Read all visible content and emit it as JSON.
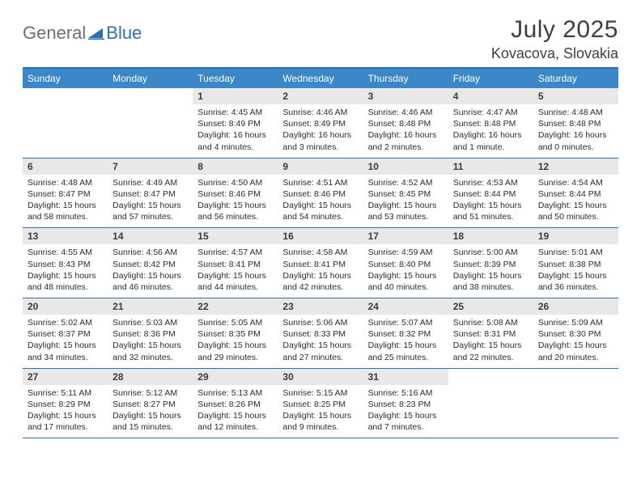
{
  "logo": {
    "general": "General",
    "blue": "Blue"
  },
  "title": "July 2025",
  "location": "Kovacova, Slovakia",
  "colors": {
    "header_bar": "#3b87c8",
    "border": "#2f6fb0",
    "daynum_bg": "#e8e8e8",
    "text": "#2c2c2c",
    "logo_gray": "#6f6f6f",
    "logo_blue": "#2f6fb0"
  },
  "day_headers": [
    "Sunday",
    "Monday",
    "Tuesday",
    "Wednesday",
    "Thursday",
    "Friday",
    "Saturday"
  ],
  "weeks": [
    [
      null,
      null,
      {
        "n": "1",
        "sr": "4:45 AM",
        "ss": "8:49 PM",
        "dl": "16 hours and 4 minutes."
      },
      {
        "n": "2",
        "sr": "4:46 AM",
        "ss": "8:49 PM",
        "dl": "16 hours and 3 minutes."
      },
      {
        "n": "3",
        "sr": "4:46 AM",
        "ss": "8:48 PM",
        "dl": "16 hours and 2 minutes."
      },
      {
        "n": "4",
        "sr": "4:47 AM",
        "ss": "8:48 PM",
        "dl": "16 hours and 1 minute."
      },
      {
        "n": "5",
        "sr": "4:48 AM",
        "ss": "8:48 PM",
        "dl": "16 hours and 0 minutes."
      }
    ],
    [
      {
        "n": "6",
        "sr": "4:48 AM",
        "ss": "8:47 PM",
        "dl": "15 hours and 58 minutes."
      },
      {
        "n": "7",
        "sr": "4:49 AM",
        "ss": "8:47 PM",
        "dl": "15 hours and 57 minutes."
      },
      {
        "n": "8",
        "sr": "4:50 AM",
        "ss": "8:46 PM",
        "dl": "15 hours and 56 minutes."
      },
      {
        "n": "9",
        "sr": "4:51 AM",
        "ss": "8:46 PM",
        "dl": "15 hours and 54 minutes."
      },
      {
        "n": "10",
        "sr": "4:52 AM",
        "ss": "8:45 PM",
        "dl": "15 hours and 53 minutes."
      },
      {
        "n": "11",
        "sr": "4:53 AM",
        "ss": "8:44 PM",
        "dl": "15 hours and 51 minutes."
      },
      {
        "n": "12",
        "sr": "4:54 AM",
        "ss": "8:44 PM",
        "dl": "15 hours and 50 minutes."
      }
    ],
    [
      {
        "n": "13",
        "sr": "4:55 AM",
        "ss": "8:43 PM",
        "dl": "15 hours and 48 minutes."
      },
      {
        "n": "14",
        "sr": "4:56 AM",
        "ss": "8:42 PM",
        "dl": "15 hours and 46 minutes."
      },
      {
        "n": "15",
        "sr": "4:57 AM",
        "ss": "8:41 PM",
        "dl": "15 hours and 44 minutes."
      },
      {
        "n": "16",
        "sr": "4:58 AM",
        "ss": "8:41 PM",
        "dl": "15 hours and 42 minutes."
      },
      {
        "n": "17",
        "sr": "4:59 AM",
        "ss": "8:40 PM",
        "dl": "15 hours and 40 minutes."
      },
      {
        "n": "18",
        "sr": "5:00 AM",
        "ss": "8:39 PM",
        "dl": "15 hours and 38 minutes."
      },
      {
        "n": "19",
        "sr": "5:01 AM",
        "ss": "8:38 PM",
        "dl": "15 hours and 36 minutes."
      }
    ],
    [
      {
        "n": "20",
        "sr": "5:02 AM",
        "ss": "8:37 PM",
        "dl": "15 hours and 34 minutes."
      },
      {
        "n": "21",
        "sr": "5:03 AM",
        "ss": "8:36 PM",
        "dl": "15 hours and 32 minutes."
      },
      {
        "n": "22",
        "sr": "5:05 AM",
        "ss": "8:35 PM",
        "dl": "15 hours and 29 minutes."
      },
      {
        "n": "23",
        "sr": "5:06 AM",
        "ss": "8:33 PM",
        "dl": "15 hours and 27 minutes."
      },
      {
        "n": "24",
        "sr": "5:07 AM",
        "ss": "8:32 PM",
        "dl": "15 hours and 25 minutes."
      },
      {
        "n": "25",
        "sr": "5:08 AM",
        "ss": "8:31 PM",
        "dl": "15 hours and 22 minutes."
      },
      {
        "n": "26",
        "sr": "5:09 AM",
        "ss": "8:30 PM",
        "dl": "15 hours and 20 minutes."
      }
    ],
    [
      {
        "n": "27",
        "sr": "5:11 AM",
        "ss": "8:29 PM",
        "dl": "15 hours and 17 minutes."
      },
      {
        "n": "28",
        "sr": "5:12 AM",
        "ss": "8:27 PM",
        "dl": "15 hours and 15 minutes."
      },
      {
        "n": "29",
        "sr": "5:13 AM",
        "ss": "8:26 PM",
        "dl": "15 hours and 12 minutes."
      },
      {
        "n": "30",
        "sr": "5:15 AM",
        "ss": "8:25 PM",
        "dl": "15 hours and 9 minutes."
      },
      {
        "n": "31",
        "sr": "5:16 AM",
        "ss": "8:23 PM",
        "dl": "15 hours and 7 minutes."
      },
      null,
      null
    ]
  ],
  "labels": {
    "sunrise": "Sunrise:",
    "sunset": "Sunset:",
    "daylight": "Daylight:"
  }
}
